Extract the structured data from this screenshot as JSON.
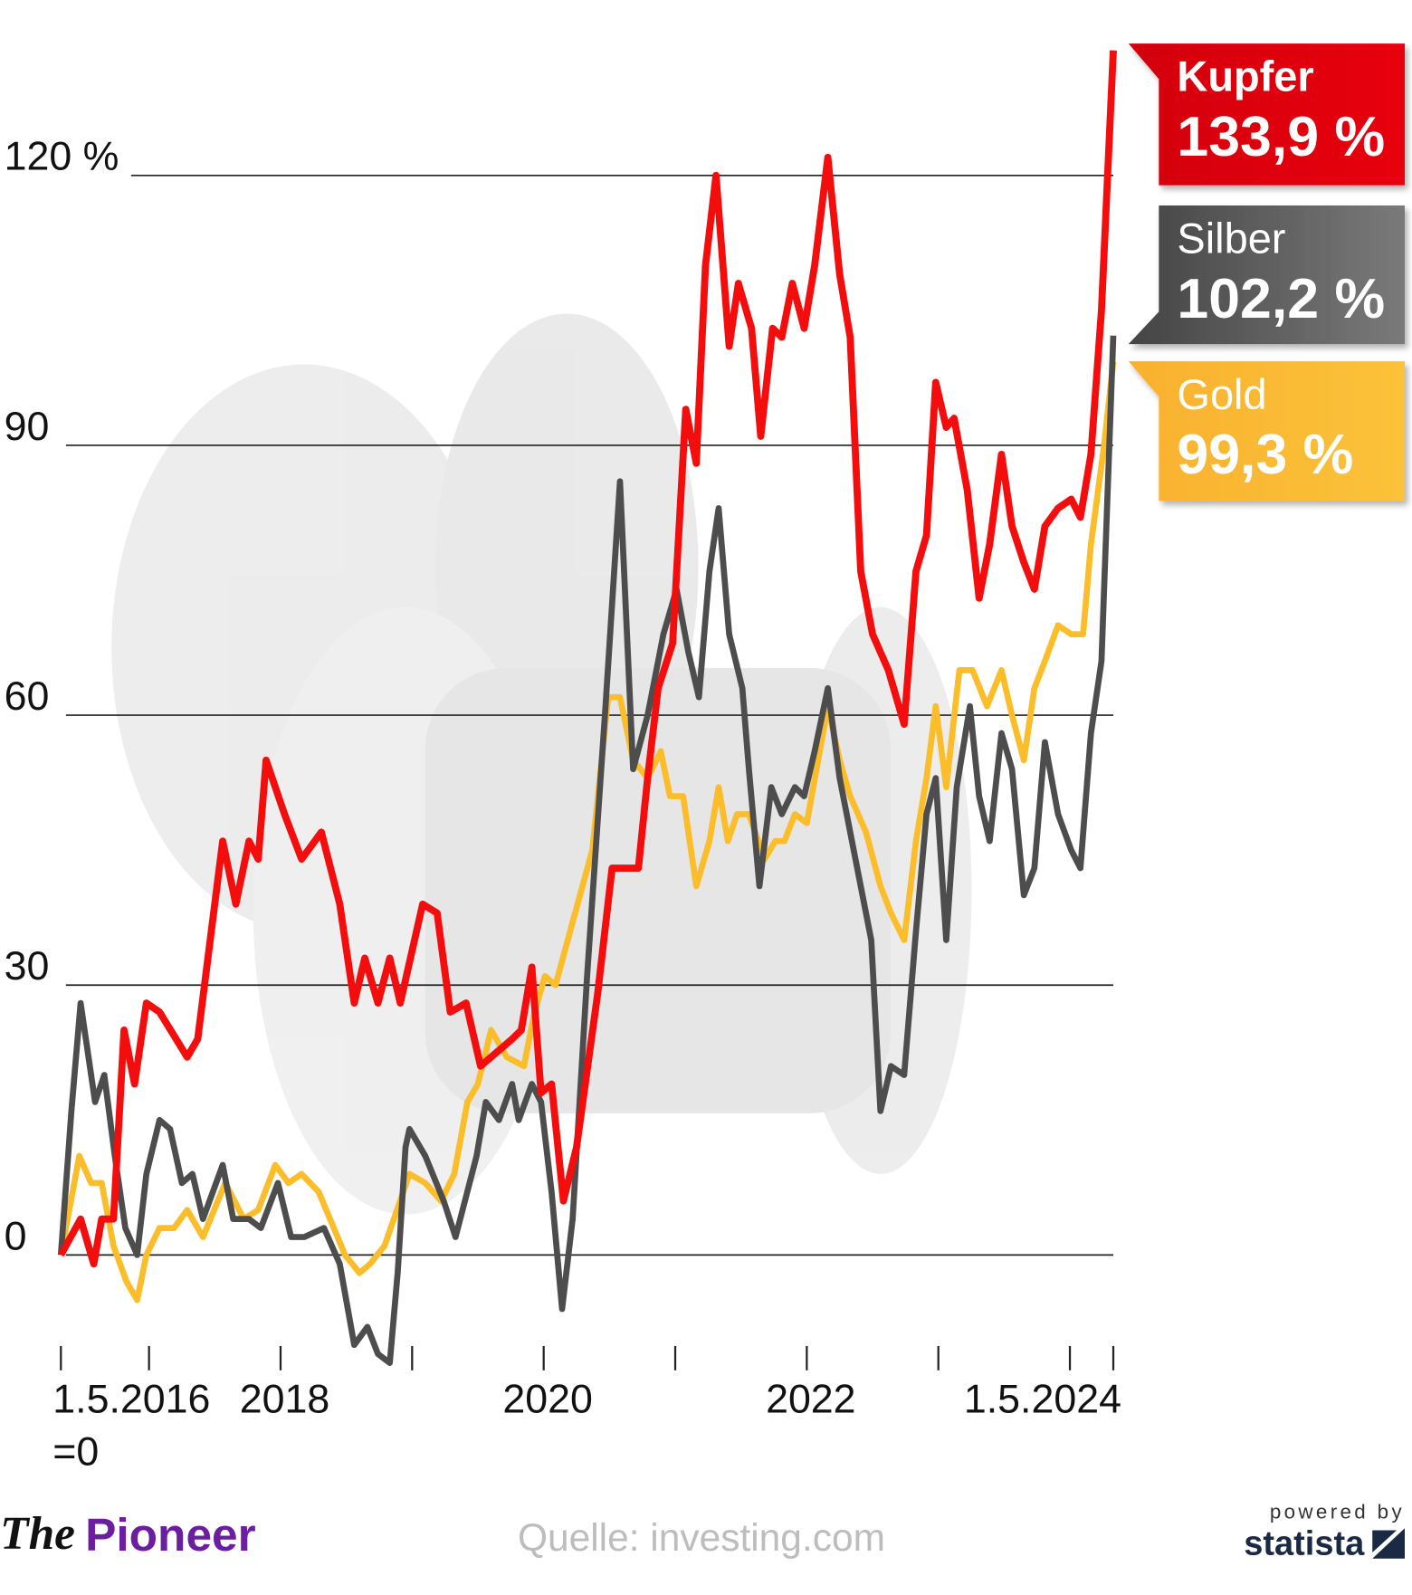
{
  "chart_data": {
    "type": "line",
    "xlim": [
      2016.33,
      2024.33
    ],
    "xticks": [
      {
        "value": 2016.33,
        "label": "1.5.2016\n=0"
      },
      {
        "value": 2017,
        "label": null
      },
      2018,
      {
        "value": 2019,
        "label": null
      },
      2020,
      {
        "value": 2021,
        "label": null
      },
      2022,
      {
        "value": 2023,
        "label": null
      },
      {
        "value": 2024,
        "label": null
      },
      {
        "value": 2024.33,
        "label": "1.5.2024"
      }
    ],
    "ylim": [
      -12,
      136
    ],
    "yticks": [
      0,
      30,
      60,
      90,
      {
        "value": 120,
        "label": "120 %"
      }
    ],
    "grid": true,
    "series": [
      {
        "name": "Gold",
        "color": "#fbbd2a",
        "end_label": "99,3 %",
        "x": [
          2016.33,
          2016.47,
          2016.56,
          2016.64,
          2016.73,
          2016.83,
          2016.91,
          2016.98,
          2017.08,
          2017.19,
          2017.29,
          2017.41,
          2017.58,
          2017.72,
          2017.83,
          2017.96,
          2018.06,
          2018.16,
          2018.29,
          2018.49,
          2018.6,
          2018.68,
          2018.79,
          2018.98,
          2019.1,
          2019.22,
          2019.32,
          2019.42,
          2019.5,
          2019.6,
          2019.72,
          2019.85,
          2019.93,
          2020.01,
          2020.09,
          2020.22,
          2020.37,
          2020.49,
          2020.58,
          2020.68,
          2020.79,
          2020.89,
          2020.96,
          2021.06,
          2021.16,
          2021.26,
          2021.33,
          2021.4,
          2021.47,
          2021.56,
          2021.68,
          2021.76,
          2021.83,
          2021.91,
          2022,
          2022.16,
          2022.25,
          2022.33,
          2022.45,
          2022.56,
          2022.64,
          2022.74,
          2022.83,
          2022.91,
          2022.98,
          2023.06,
          2023.16,
          2023.26,
          2023.37,
          2023.48,
          2023.56,
          2023.65,
          2023.73,
          2023.81,
          2023.91,
          2024.01,
          2024.1,
          2024.16,
          2024.26,
          2024.33
        ],
        "values": [
          0,
          11,
          8,
          8,
          1,
          -3,
          -5,
          0,
          3,
          3,
          5,
          2,
          8,
          4,
          5,
          10,
          8,
          9,
          7,
          0,
          -2,
          -1,
          1,
          9,
          8,
          6,
          9,
          17,
          19,
          25,
          22,
          21,
          27,
          31,
          30,
          37,
          45,
          62,
          62,
          55,
          53,
          56,
          51,
          51,
          41,
          46,
          52,
          46,
          49,
          49,
          44,
          46,
          46,
          49,
          48,
          61,
          55,
          51,
          47,
          41,
          38,
          35,
          46,
          53,
          61,
          52,
          65,
          65,
          61,
          65,
          60,
          55,
          63,
          66,
          70,
          69,
          69,
          79,
          90,
          99.3
        ]
      },
      {
        "name": "Silber",
        "color": "#4d4d4d",
        "end_label": "102,2 %",
        "x": [
          2016.33,
          2016.41,
          2016.48,
          2016.59,
          2016.66,
          2016.74,
          2016.82,
          2016.91,
          2016.98,
          2017.08,
          2017.16,
          2017.25,
          2017.33,
          2017.41,
          2017.56,
          2017.64,
          2017.76,
          2017.85,
          2017.98,
          2018.08,
          2018.18,
          2018.33,
          2018.45,
          2018.56,
          2018.66,
          2018.74,
          2018.83,
          2018.89,
          2018.95,
          2018.98,
          2019.1,
          2019.24,
          2019.33,
          2019.49,
          2019.56,
          2019.66,
          2019.76,
          2019.81,
          2019.91,
          2019.98,
          2020.06,
          2020.14,
          2020.22,
          2020.33,
          2020.47,
          2020.58,
          2020.68,
          2020.79,
          2020.91,
          2021.01,
          2021.1,
          2021.18,
          2021.26,
          2021.33,
          2021.41,
          2021.51,
          2021.56,
          2021.64,
          2021.73,
          2021.81,
          2021.91,
          2021.98,
          2022.06,
          2022.16,
          2022.25,
          2022.37,
          2022.49,
          2022.56,
          2022.64,
          2022.74,
          2022.83,
          2022.91,
          2022.98,
          2023.06,
          2023.14,
          2023.24,
          2023.31,
          2023.39,
          2023.48,
          2023.56,
          2023.65,
          2023.73,
          2023.81,
          2023.91,
          2024.01,
          2024.08,
          2024.16,
          2024.24,
          2024.33
        ],
        "values": [
          0,
          16,
          28,
          17,
          20,
          11,
          3,
          0,
          9,
          15,
          14,
          8,
          9,
          4,
          10,
          4,
          4,
          3,
          8,
          2,
          2,
          3,
          -1,
          -10,
          -8,
          -11,
          -12,
          -2,
          12,
          14,
          11,
          6,
          2,
          11,
          17,
          15,
          19,
          15,
          19,
          17,
          7,
          -6,
          4,
          31,
          61,
          86,
          54,
          60,
          69,
          74,
          67,
          62,
          76,
          83,
          69,
          63,
          54,
          41,
          52,
          49,
          52,
          51,
          56,
          63,
          53,
          44,
          35,
          16,
          21,
          20,
          36,
          49,
          53,
          35,
          52,
          61,
          51,
          46,
          58,
          54,
          40,
          43,
          57,
          49,
          45,
          43,
          58,
          66,
          102.2
        ]
      },
      {
        "name": "Kupfer",
        "color": "#f40d0d",
        "end_label": "133,9 %",
        "x": [
          2016.33,
          2016.48,
          2016.58,
          2016.64,
          2016.73,
          2016.81,
          2016.89,
          2016.98,
          2017.08,
          2017.29,
          2017.37,
          2017.56,
          2017.66,
          2017.76,
          2017.83,
          2017.89,
          2018.03,
          2018.16,
          2018.31,
          2018.45,
          2018.56,
          2018.64,
          2018.74,
          2018.83,
          2018.91,
          2019.08,
          2019.19,
          2019.29,
          2019.41,
          2019.52,
          2019.76,
          2019.83,
          2019.91,
          2019.98,
          2020.06,
          2020.15,
          2020.25,
          2020.41,
          2020.52,
          2020.72,
          2020.79,
          2020.87,
          2020.98,
          2021.08,
          2021.16,
          2021.23,
          2021.31,
          2021.41,
          2021.48,
          2021.58,
          2021.65,
          2021.74,
          2021.81,
          2021.89,
          2021.98,
          2022.06,
          2022.16,
          2022.25,
          2022.33,
          2022.41,
          2022.5,
          2022.62,
          2022.74,
          2022.83,
          2022.91,
          2022.98,
          2023.06,
          2023.12,
          2023.22,
          2023.31,
          2023.39,
          2023.48,
          2023.56,
          2023.65,
          2023.73,
          2023.81,
          2023.91,
          2024.01,
          2024.08,
          2024.16,
          2024.24,
          2024.33
        ],
        "values": [
          0,
          4,
          -1,
          4,
          4,
          25,
          19,
          28,
          27,
          22,
          24,
          46,
          39,
          46,
          44,
          55,
          49,
          44,
          47,
          39,
          28,
          33,
          28,
          33,
          28,
          39,
          38,
          27,
          28,
          21,
          24,
          25,
          32,
          18,
          19,
          6,
          12,
          29,
          43,
          43,
          53,
          63,
          68,
          94,
          88,
          110,
          120,
          101,
          108,
          103,
          91,
          103,
          102,
          108,
          103,
          110,
          122,
          109,
          102,
          76,
          69,
          65,
          59,
          76,
          80,
          97,
          92,
          93,
          85,
          73,
          79,
          89,
          81,
          77,
          74,
          81,
          83,
          84,
          82,
          89,
          105,
          133.9
        ]
      }
    ]
  },
  "footer": {
    "brand_the": "The",
    "brand_pioneer": "Pioneer",
    "source": "Quelle: investing.com",
    "powered": "powered by",
    "statista": "statista"
  }
}
